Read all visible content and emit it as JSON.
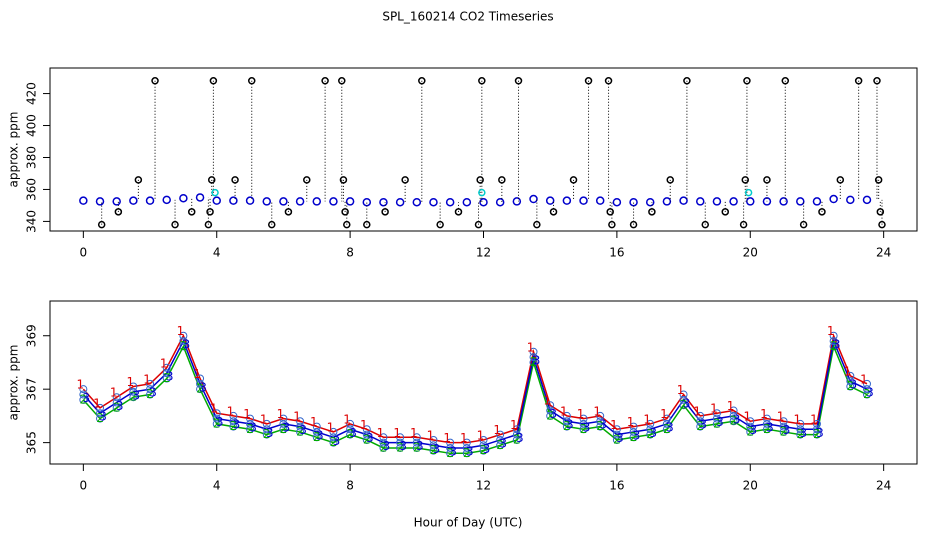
{
  "chart_data": [
    {
      "type": "scatter",
      "title": "SPL_160214  CO2 Timeseries",
      "y_label": "approx. ppm",
      "xlim": [
        -1,
        25
      ],
      "xticks": [
        0,
        4,
        8,
        12,
        16,
        20,
        24
      ],
      "ylim": [
        334,
        436
      ],
      "yticks": [
        340,
        360,
        380,
        400,
        420
      ],
      "series": [
        {
          "color": "#0000cc",
          "x": [
            0,
            0.5,
            1,
            1.5,
            2,
            2.5,
            3,
            3.5,
            4,
            4.5,
            5,
            5.5,
            6,
            6.5,
            7,
            7.5,
            8,
            8.5,
            9,
            9.5,
            10,
            10.5,
            11,
            11.5,
            12,
            12.5,
            13,
            13.5,
            14,
            14.5,
            15,
            15.5,
            16,
            16.5,
            17,
            17.5,
            18,
            18.5,
            19,
            19.5,
            20,
            20.5,
            21,
            21.5,
            22,
            22.5,
            23,
            23.5
          ],
          "values": [
            353,
            352.5,
            352.5,
            353,
            353,
            353.5,
            354.5,
            355,
            353,
            353,
            353,
            352.5,
            352.5,
            352.5,
            352.5,
            352.5,
            352.5,
            352,
            352,
            352,
            352,
            352,
            352,
            352,
            352,
            352,
            352.5,
            354,
            353,
            353,
            353,
            353,
            352,
            352,
            352,
            352.5,
            353,
            352.5,
            352.5,
            352.5,
            352.5,
            352.5,
            352.5,
            352.5,
            352.5,
            354,
            353.5,
            353.5
          ]
        },
        {
          "color": "#000000",
          "x": [
            0.55,
            1.05,
            1.65,
            2.15,
            2.75,
            3.25,
            3.75,
            3.8,
            3.85,
            3.9,
            4.55,
            5.05,
            5.65,
            6.15,
            6.7,
            7.25,
            7.75,
            7.8,
            7.85,
            7.9,
            8.5,
            9.05,
            9.65,
            10.15,
            10.7,
            11.25,
            11.85,
            11.9,
            11.95,
            12.55,
            13.05,
            13.6,
            14.1,
            14.7,
            15.15,
            15.75,
            15.8,
            15.85,
            16.5,
            17.05,
            17.6,
            18.1,
            18.65,
            19.25,
            19.8,
            19.85,
            19.9,
            20.5,
            21.05,
            21.6,
            22.15,
            22.7,
            23.25,
            23.8,
            23.85,
            23.9,
            23.95
          ],
          "values": [
            338,
            346,
            366,
            428,
            338,
            346,
            338,
            346,
            366,
            428,
            366,
            428,
            338,
            346,
            366,
            428,
            428,
            366,
            346,
            338,
            338,
            346,
            366,
            428,
            338,
            346,
            338,
            366,
            428,
            366,
            428,
            338,
            346,
            366,
            428,
            428,
            346,
            338,
            338,
            346,
            366,
            428,
            338,
            346,
            338,
            366,
            428,
            366,
            428,
            338,
            346,
            366,
            428,
            428,
            366,
            346,
            338
          ]
        },
        {
          "color": "#00cccc",
          "x": [
            3.95,
            11.95,
            19.95
          ],
          "values": [
            358,
            358,
            358
          ]
        }
      ]
    },
    {
      "type": "scatter",
      "y_label": "approx. ppm",
      "x_label": "Hour of Day (UTC)",
      "xlim": [
        -1,
        25
      ],
      "xticks": [
        0,
        4,
        8,
        12,
        16,
        20,
        24
      ],
      "ylim": [
        364.2,
        370.3
      ],
      "yticks": [
        365,
        367,
        369
      ],
      "x": [
        0,
        0.5,
        1,
        1.5,
        2,
        2.5,
        3,
        3.5,
        4,
        4.5,
        5,
        5.5,
        6,
        6.5,
        7,
        7.5,
        8,
        8.5,
        9,
        9.5,
        10,
        10.5,
        11,
        11.5,
        12,
        12.5,
        13,
        13.5,
        14,
        14.5,
        15,
        15.5,
        16,
        16.5,
        17,
        17.5,
        18,
        18.5,
        19,
        19.5,
        20,
        20.5,
        21,
        21.5,
        22,
        22.5,
        23,
        23.5
      ],
      "series": [
        {
          "name": "1",
          "color": "#dd0000",
          "values": [
            367.0,
            366.3,
            366.7,
            367.1,
            367.2,
            367.8,
            369.0,
            367.4,
            366.1,
            366.0,
            365.9,
            365.7,
            365.9,
            365.8,
            365.6,
            365.4,
            365.7,
            365.5,
            365.2,
            365.2,
            365.2,
            365.1,
            365.0,
            365.0,
            365.1,
            365.3,
            365.5,
            368.4,
            366.4,
            366.0,
            365.9,
            366.0,
            365.5,
            365.6,
            365.7,
            365.9,
            366.8,
            366.0,
            366.1,
            366.2,
            365.8,
            365.9,
            365.8,
            365.7,
            365.7,
            369.0,
            367.5,
            367.2
          ]
        },
        {
          "name": "2",
          "color": "#00aa00",
          "values": [
            366.6,
            365.9,
            366.3,
            366.7,
            366.8,
            367.4,
            368.6,
            367.0,
            365.7,
            365.6,
            365.5,
            365.3,
            365.5,
            365.4,
            365.2,
            365.0,
            365.3,
            365.1,
            364.8,
            364.8,
            364.8,
            364.7,
            364.6,
            364.6,
            364.7,
            364.9,
            365.1,
            368.0,
            366.0,
            365.6,
            365.5,
            365.6,
            365.1,
            365.2,
            365.3,
            365.5,
            366.4,
            365.6,
            365.7,
            365.8,
            365.4,
            365.5,
            365.4,
            365.3,
            365.3,
            368.6,
            367.1,
            366.8
          ]
        },
        {
          "name": "3",
          "color": "#0000cc",
          "values": [
            366.8,
            366.1,
            366.5,
            366.9,
            367.0,
            367.6,
            368.8,
            367.2,
            365.9,
            365.8,
            365.7,
            365.5,
            365.7,
            365.6,
            365.4,
            365.2,
            365.5,
            365.3,
            365.0,
            365.0,
            365.0,
            364.9,
            364.8,
            364.8,
            364.9,
            365.1,
            365.3,
            368.2,
            366.2,
            365.8,
            365.7,
            365.8,
            365.3,
            365.4,
            365.5,
            365.7,
            366.6,
            365.8,
            365.9,
            366.0,
            365.6,
            365.7,
            365.6,
            365.5,
            365.5,
            368.8,
            367.3,
            367.0
          ]
        }
      ]
    }
  ]
}
